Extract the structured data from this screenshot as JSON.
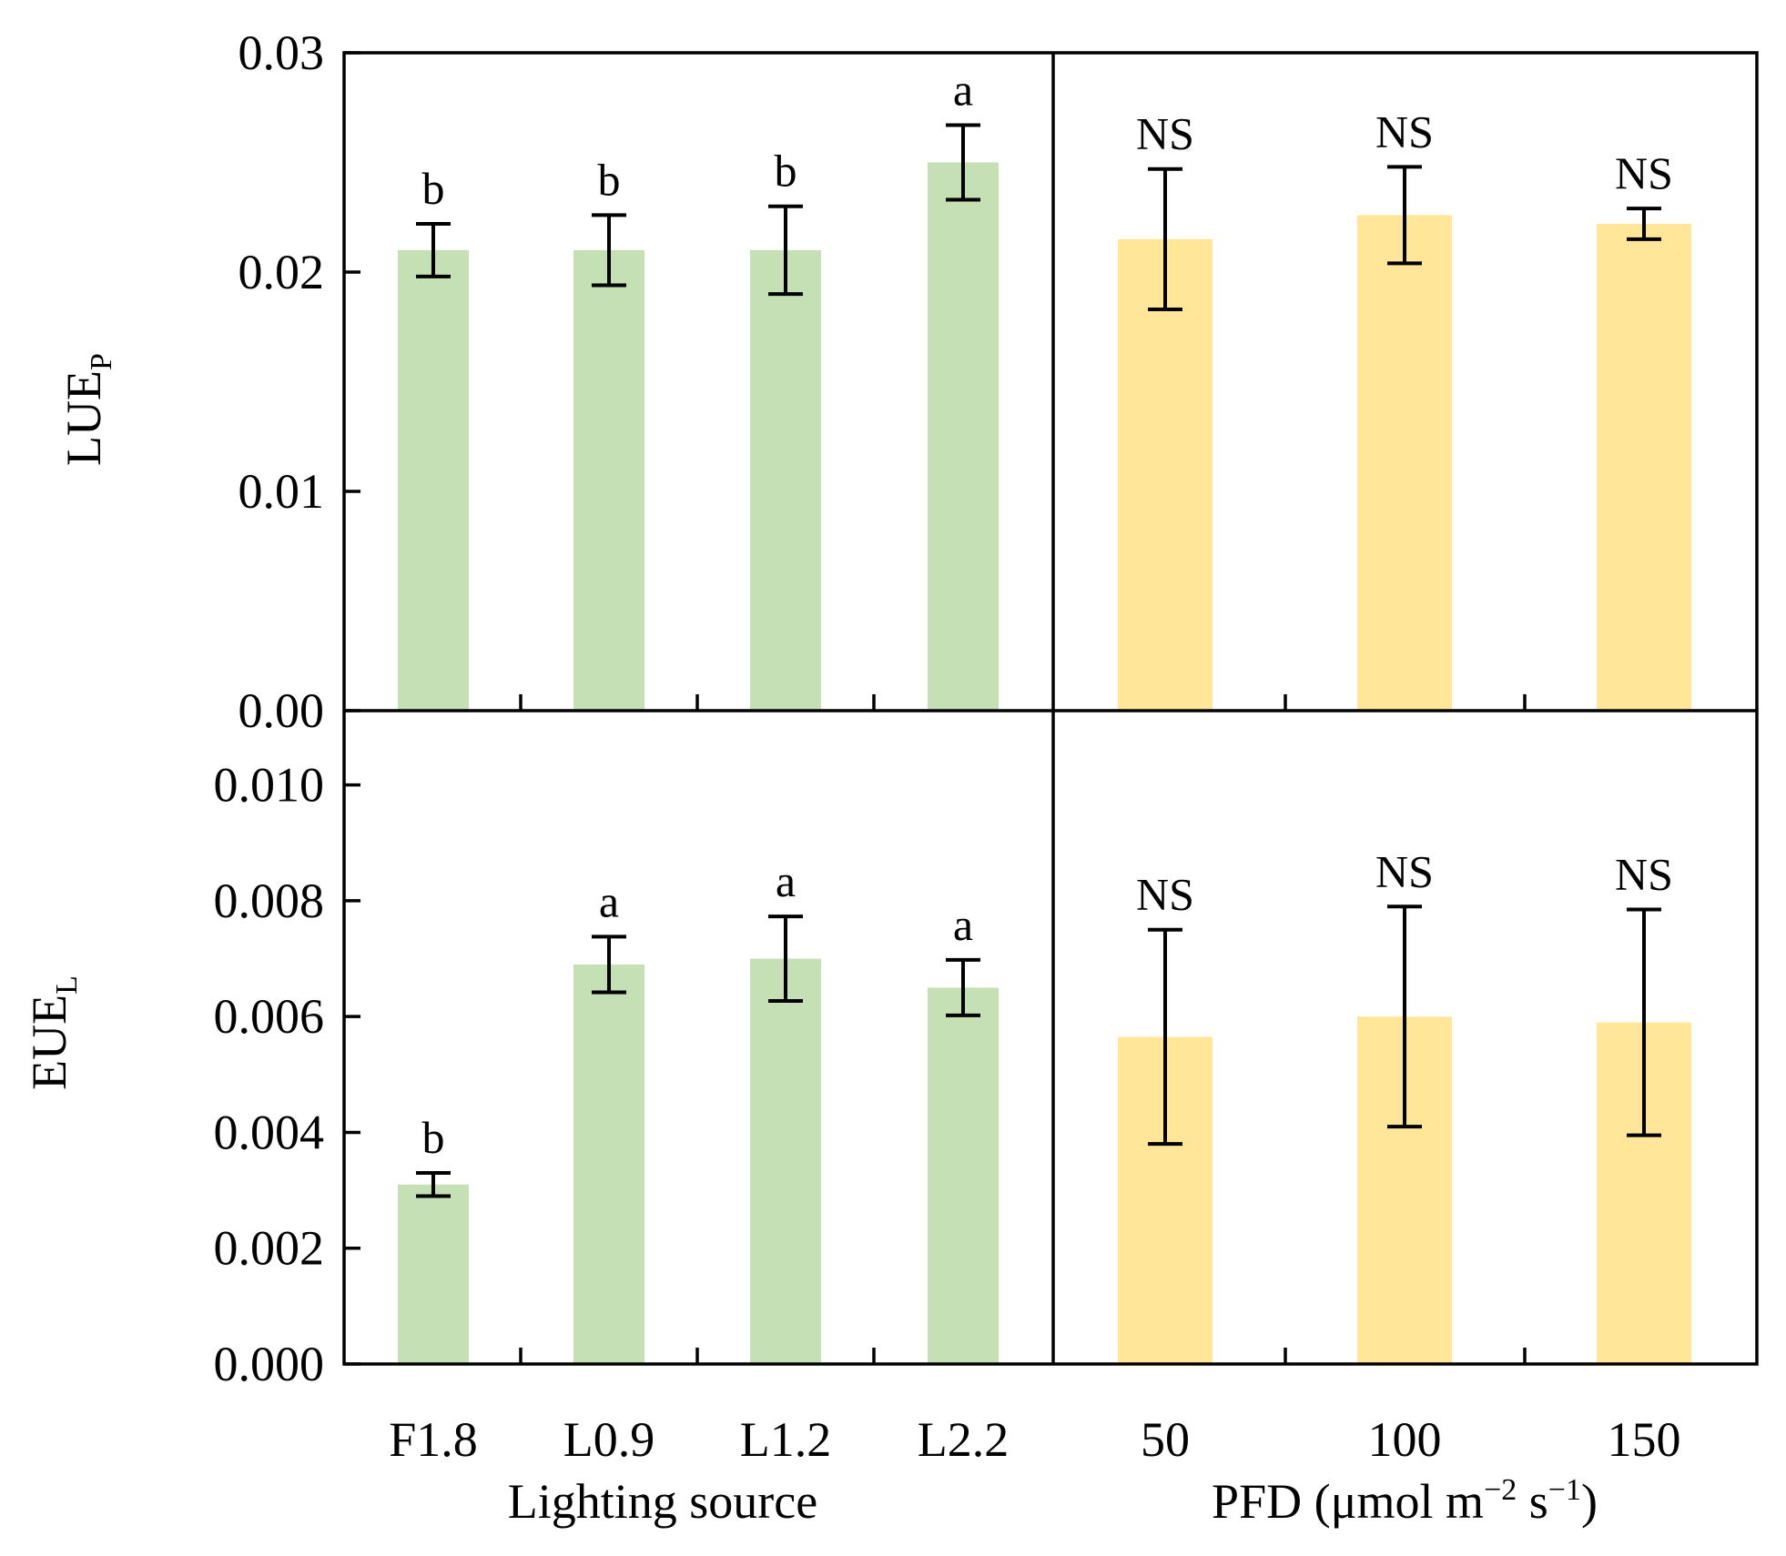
{
  "colors": {
    "lighting_bar": "#c5e0b4",
    "pfd_bar": "#ffe699",
    "axis": "#000000"
  },
  "chart_data": [
    {
      "type": "bar",
      "panel": "top-left",
      "ylabel": "LUE",
      "ylabel_subscript": "P",
      "ylim": [
        0,
        0.03
      ],
      "yticks": [
        "0.00",
        "0.01",
        "0.02",
        "0.03"
      ],
      "ytick_values": [
        0,
        0.01,
        0.02,
        0.03
      ],
      "categories": [
        "F1.8",
        "L0.9",
        "L1.2",
        "L2.2"
      ],
      "values": [
        0.021,
        0.021,
        0.021,
        0.025
      ],
      "errors": [
        0.0012,
        0.0016,
        0.002,
        0.0017
      ],
      "significance": [
        "b",
        "b",
        "b",
        "a"
      ],
      "color_key": "lighting_bar"
    },
    {
      "type": "bar",
      "panel": "top-right",
      "ylim": [
        0,
        0.03
      ],
      "categories": [
        "50",
        "100",
        "150"
      ],
      "values": [
        0.0215,
        0.0226,
        0.0222
      ],
      "errors": [
        0.0032,
        0.0022,
        0.0007
      ],
      "significance": [
        "NS",
        "NS",
        "NS"
      ],
      "color_key": "pfd_bar"
    },
    {
      "type": "bar",
      "panel": "bottom-left",
      "ylabel": "EUE",
      "ylabel_subscript": "L",
      "ylim": [
        0,
        0.011
      ],
      "yticks": [
        "0.000",
        "0.002",
        "0.004",
        "0.006",
        "0.008",
        "0.010"
      ],
      "ytick_values": [
        0,
        0.002,
        0.004,
        0.006,
        0.008,
        0.01
      ],
      "categories": [
        "F1.8",
        "L0.9",
        "L1.2",
        "L2.2"
      ],
      "values": [
        0.0031,
        0.0069,
        0.007,
        0.0065
      ],
      "errors": [
        0.0002,
        0.00048,
        0.00073,
        0.00048
      ],
      "significance": [
        "b",
        "a",
        "a",
        "a"
      ],
      "xlabel": "Lighting source",
      "color_key": "lighting_bar"
    },
    {
      "type": "bar",
      "panel": "bottom-right",
      "ylim": [
        0,
        0.011
      ],
      "categories": [
        "50",
        "100",
        "150"
      ],
      "values": [
        0.00565,
        0.006,
        0.0059
      ],
      "errors": [
        0.00185,
        0.0019,
        0.00195
      ],
      "significance": [
        "NS",
        "NS",
        "NS"
      ],
      "xlabel": "PFD (μmol m",
      "xlabel_exp1": "−2",
      "xlabel_mid": " s",
      "xlabel_exp2": "−1",
      "xlabel_end": ")",
      "color_key": "pfd_bar"
    }
  ]
}
